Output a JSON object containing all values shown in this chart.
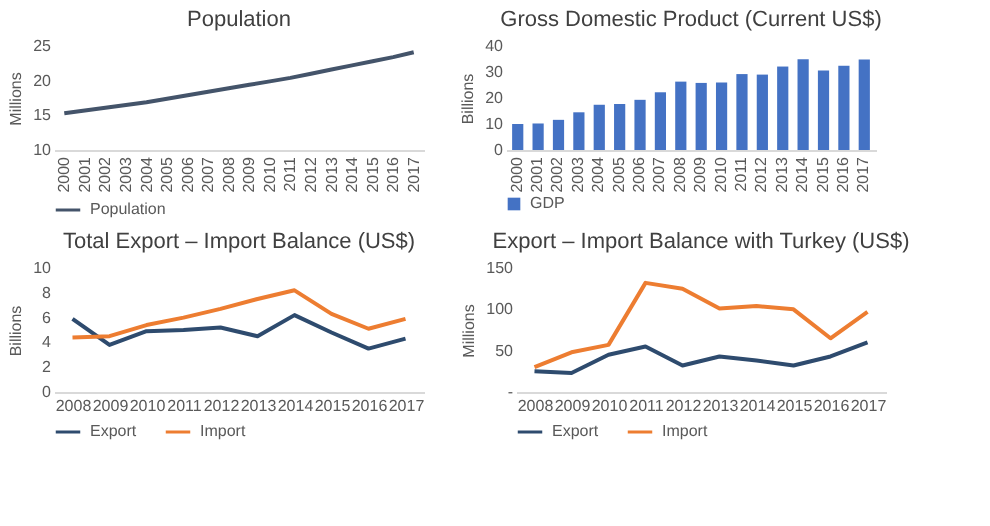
{
  "chart_data": [
    {
      "type": "line",
      "title": "Population",
      "ylabel": "Millions",
      "categories": [
        "2000",
        "2001",
        "2002",
        "2003",
        "2004",
        "2005",
        "2006",
        "2007",
        "2008",
        "2009",
        "2010",
        "2011",
        "2012",
        "2013",
        "2014",
        "2015",
        "2016",
        "2017"
      ],
      "series": [
        {
          "name": "Population",
          "color": "#44546a",
          "values": [
            15.3,
            15.7,
            16.1,
            16.5,
            16.9,
            17.4,
            17.9,
            18.4,
            18.9,
            19.4,
            19.9,
            20.4,
            21.0,
            21.6,
            22.2,
            22.8,
            23.4,
            24.1
          ]
        }
      ],
      "ylim": [
        10,
        25
      ],
      "yticks": [
        10,
        15,
        20,
        25
      ],
      "legend": "bottom",
      "grid": false
    },
    {
      "type": "bar",
      "title": "Gross Domestic Product (Current US$)",
      "ylabel": "Billions",
      "categories": [
        "2000",
        "2001",
        "2002",
        "2003",
        "2004",
        "2005",
        "2006",
        "2007",
        "2008",
        "2009",
        "2010",
        "2011",
        "2012",
        "2013",
        "2014",
        "2015",
        "2016",
        "2017"
      ],
      "series": [
        {
          "name": "GDP",
          "color": "#4472c4",
          "values": [
            10.0,
            10.2,
            11.6,
            14.5,
            17.4,
            17.7,
            19.3,
            22.2,
            26.3,
            25.8,
            26.0,
            29.2,
            29.0,
            32.1,
            34.9,
            30.6,
            32.4,
            34.8
          ]
        }
      ],
      "ylim": [
        0,
        40
      ],
      "yticks": [
        0,
        10,
        20,
        30,
        40
      ],
      "legend": "bottom",
      "grid": false
    },
    {
      "type": "line",
      "title": "Total Export – Import Balance (US$)",
      "ylabel": "Billions",
      "categories": [
        "2008",
        "2009",
        "2010",
        "2011",
        "2012",
        "2013",
        "2014",
        "2015",
        "2016",
        "2017"
      ],
      "series": [
        {
          "name": "Export",
          "color": "#2e4b6e",
          "values": [
            5.9,
            3.8,
            4.9,
            5.0,
            5.2,
            4.5,
            6.2,
            4.8,
            3.5,
            4.3
          ]
        },
        {
          "name": "Import",
          "color": "#ed7d31",
          "values": [
            4.4,
            4.5,
            5.4,
            6.0,
            6.7,
            7.5,
            8.2,
            6.3,
            5.1,
            5.9
          ]
        }
      ],
      "ylim": [
        0,
        10
      ],
      "yticks": [
        0,
        2,
        4,
        6,
        8,
        10
      ],
      "legend": "bottom",
      "grid": false
    },
    {
      "type": "line",
      "title": "Export – Import Balance with Turkey (US$)",
      "ylabel": "Millions",
      "categories": [
        "2008",
        "2009",
        "2010",
        "2011",
        "2012",
        "2013",
        "2014",
        "2015",
        "2016",
        "2017"
      ],
      "series": [
        {
          "name": "Export",
          "color": "#2e4b6e",
          "values": [
            25,
            23,
            45,
            55,
            32,
            43,
            38,
            32,
            43,
            60
          ]
        },
        {
          "name": "Import",
          "color": "#ed7d31",
          "values": [
            30,
            48,
            57,
            132,
            125,
            101,
            104,
            100,
            65,
            97
          ]
        }
      ],
      "ylim": [
        0,
        150
      ],
      "yticks": [
        {
          "value": 0,
          "label": "-"
        },
        50,
        100,
        150
      ],
      "legend": "bottom",
      "grid": false
    }
  ]
}
